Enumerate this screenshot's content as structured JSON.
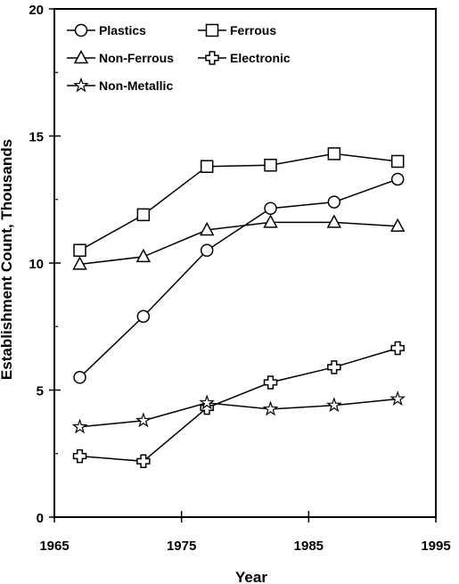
{
  "chart_data": {
    "type": "line",
    "xlabel": "Year",
    "ylabel": "Establishment Count, Thousands",
    "xlim": [
      1965,
      1995
    ],
    "ylim": [
      0,
      20
    ],
    "xticks": [
      1965,
      1975,
      1985,
      1995
    ],
    "yticks": [
      0,
      5,
      10,
      15,
      20
    ],
    "grid": false,
    "legend_position": "top-left",
    "series": [
      {
        "name": "Plastics",
        "marker": "circle",
        "x": [
          1967,
          1972,
          1977,
          1982,
          1987,
          1992
        ],
        "y": [
          5.5,
          7.9,
          10.5,
          12.15,
          12.4,
          13.3
        ]
      },
      {
        "name": "Ferrous",
        "marker": "square",
        "x": [
          1967,
          1972,
          1977,
          1982,
          1987,
          1992
        ],
        "y": [
          10.5,
          11.9,
          13.8,
          13.85,
          14.3,
          14.0
        ]
      },
      {
        "name": "Non-Ferrous",
        "marker": "triangle",
        "x": [
          1967,
          1972,
          1977,
          1982,
          1987,
          1992
        ],
        "y": [
          9.95,
          10.25,
          11.3,
          11.6,
          11.6,
          11.45
        ]
      },
      {
        "name": "Electronic",
        "marker": "cross",
        "x": [
          1967,
          1972,
          1977,
          1982,
          1987,
          1992
        ],
        "y": [
          2.4,
          2.2,
          4.3,
          5.3,
          5.9,
          6.65
        ]
      },
      {
        "name": "Non-Metallic",
        "marker": "star",
        "x": [
          1967,
          1972,
          1977,
          1982,
          1987,
          1992
        ],
        "y": [
          3.55,
          3.8,
          4.5,
          4.25,
          4.4,
          4.65
        ]
      }
    ]
  }
}
